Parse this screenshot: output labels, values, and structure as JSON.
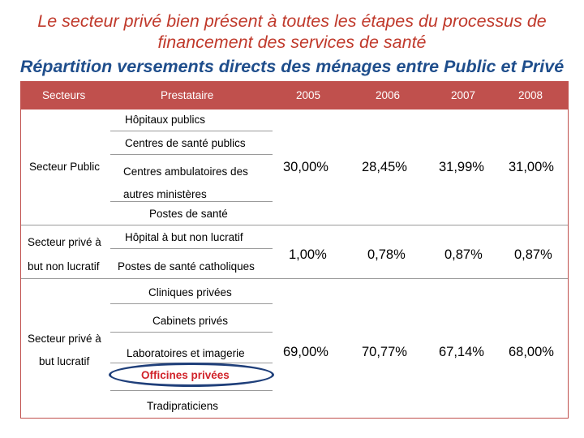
{
  "title": {
    "line1": "Le secteur privé bien présent à toutes les étapes du processus de",
    "line2": "financement des services de santé",
    "line3": "Répartition versements directs des ménages  entre Public et Privé"
  },
  "table": {
    "headers": [
      "Secteurs",
      "Prestataire",
      "2005",
      "2006",
      "2007",
      "2008"
    ],
    "sections": [
      {
        "sector": "Secteur Public",
        "providers": [
          "Hôpitaux publics",
          "Centres de santé publics",
          "Centres ambulatoires des autres ministères",
          "Postes de santé"
        ],
        "values": [
          "30,00%",
          "28,45%",
          "31,99%",
          "31,00%"
        ]
      },
      {
        "sector_line1": "Secteur privé à",
        "sector_line2": "but non lucratif",
        "providers": [
          "Hôpital à but non lucratif",
          "Postes de santé catholiques"
        ],
        "values": [
          "1,00%",
          "0,78%",
          "0,87%",
          "0,87%"
        ]
      },
      {
        "sector_line1": "Secteur privé à",
        "sector_line2": "but lucratif",
        "providers": [
          "Cliniques privées",
          "Cabinets privés",
          "Laboratoires et imagerie",
          "Officines privées",
          "Tradipraticiens"
        ],
        "values": [
          "69,00%",
          "70,77%",
          "67,14%",
          "68,00%"
        ],
        "highlight_color": "#d1232a"
      }
    ]
  }
}
